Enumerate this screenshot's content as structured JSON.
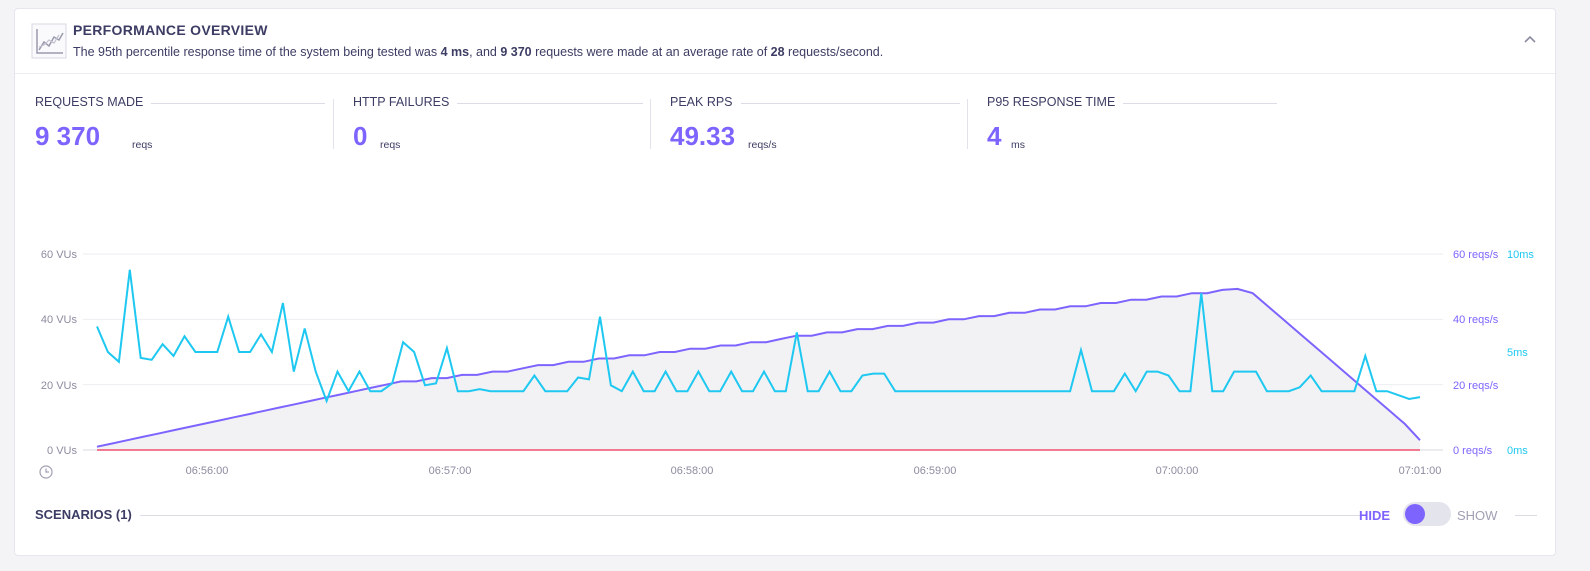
{
  "header": {
    "title": "PERFORMANCE OVERVIEW",
    "summary": {
      "p1": "The 95th percentile response time of the system being tested was ",
      "p95": "4 ms",
      "p2": ", and ",
      "requests": "9 370",
      "p3": " requests were made at an average rate of ",
      "rate": "28",
      "p4": " requests/second."
    },
    "collapse_icon": "chevron-up-icon"
  },
  "metrics": [
    {
      "label": "REQUESTS MADE",
      "value": "9 370",
      "unit": "reqs"
    },
    {
      "label": "HTTP FAILURES",
      "value": "0",
      "unit": "reqs"
    },
    {
      "label": "PEAK RPS",
      "value": "49.33",
      "unit": "reqs/s"
    },
    {
      "label": "P95 RESPONSE TIME",
      "value": "4",
      "unit": "ms"
    }
  ],
  "colors": {
    "vus": "#d4d4dc",
    "rps": "#7d64ff",
    "response": "#1ec8f0",
    "failures": "#f0506e",
    "accent": "#7d64ff"
  },
  "chart_data": {
    "type": "line",
    "x_ticks": [
      "06:56:00",
      "06:57:00",
      "06:58:00",
      "06:59:00",
      "07:00:00",
      "07:01:00"
    ],
    "x_range": [
      "06:55:40",
      "07:01:00"
    ],
    "left_axis": {
      "ticks": [
        "0 VUs",
        "20 VUs",
        "40 VUs",
        "60 VUs"
      ],
      "ylim": [
        0,
        60
      ]
    },
    "right_axis_rps": {
      "ticks": [
        "0 reqs/s",
        "20 reqs/s",
        "40 reqs/s",
        "60 reqs/s"
      ],
      "ylim": [
        0,
        60
      ]
    },
    "right_axis_ms": {
      "ticks": [
        "0ms",
        "5ms",
        "10ms"
      ],
      "ylim": [
        0,
        10
      ]
    },
    "grid": true,
    "series": [
      {
        "axis": "vus",
        "style": "area",
        "values": [
          1,
          2,
          3,
          4,
          5,
          6,
          7,
          8,
          9,
          10,
          11,
          12,
          13,
          14,
          15,
          16,
          17,
          18,
          19,
          20,
          21,
          21,
          22,
          22,
          23,
          23,
          24,
          24,
          25,
          26,
          26,
          27,
          27,
          28,
          28,
          29,
          29,
          30,
          30,
          31,
          31,
          32,
          32,
          33,
          33,
          34,
          35,
          35,
          36,
          36,
          37,
          37,
          38,
          38,
          39,
          39,
          40,
          40,
          41,
          41,
          42,
          42,
          43,
          43,
          44,
          44,
          45,
          45,
          46,
          46,
          47,
          47,
          48,
          48,
          49,
          49,
          48,
          44,
          40,
          36,
          32,
          28,
          24,
          20,
          16,
          12,
          8,
          3
        ]
      },
      {
        "axis": "rps",
        "style": "line",
        "values": [
          1,
          2,
          3,
          4,
          5,
          6,
          7,
          8,
          9,
          10,
          11,
          12,
          13,
          14,
          15,
          16,
          17,
          18,
          19,
          20,
          21,
          21,
          22,
          22,
          23,
          23,
          24,
          24,
          25,
          26,
          26,
          27,
          27,
          28,
          28,
          29,
          29,
          30,
          30,
          31,
          31,
          32,
          32,
          33,
          33,
          34,
          35,
          35,
          36,
          36,
          37,
          37,
          38,
          38,
          39,
          39,
          40,
          40,
          41,
          41,
          42,
          42,
          43,
          43,
          44,
          44,
          45,
          45,
          46,
          46,
          47,
          47,
          48,
          48,
          49,
          49.33,
          48,
          44,
          40,
          36,
          32,
          28,
          24,
          20,
          16,
          12,
          8,
          3
        ]
      },
      {
        "axis": "ms",
        "style": "line",
        "values": [
          6.3,
          5,
          4.5,
          9.2,
          4.7,
          4.6,
          5.4,
          4.8,
          5.8,
          5,
          5,
          5,
          6.8,
          5,
          5,
          5.9,
          5,
          7.5,
          4,
          6.2,
          4,
          2.5,
          4,
          3,
          4,
          3,
          3,
          3.4,
          5.5,
          5,
          3.3,
          3.4,
          5.2,
          3,
          3,
          3.1,
          3,
          3,
          3,
          3,
          3.8,
          3,
          3,
          3,
          3.7,
          3.6,
          6.8,
          3.3,
          3,
          4,
          3,
          3,
          4,
          3,
          3,
          4,
          3,
          3,
          4,
          3,
          3,
          4,
          3,
          3,
          6,
          3,
          3,
          4,
          3,
          3,
          3.8,
          3.9,
          3.9,
          3,
          3,
          3,
          3,
          3,
          3,
          3,
          3,
          3,
          3,
          3,
          3,
          3,
          3,
          3,
          3,
          3,
          5.1,
          3,
          3,
          3,
          3.9,
          3,
          4,
          4,
          3.8,
          3,
          3,
          8,
          3,
          3,
          4,
          4,
          4,
          3,
          3,
          3,
          3.2,
          3.8,
          3,
          3,
          3,
          3,
          4.8,
          3,
          3,
          2.8,
          2.6,
          2.7
        ]
      },
      {
        "axis": "rps",
        "style": "line",
        "values": [
          0,
          0
        ]
      }
    ]
  },
  "scenarios": {
    "label": "SCENARIOS (1)",
    "hide": "HIDE",
    "show": "SHOW"
  }
}
